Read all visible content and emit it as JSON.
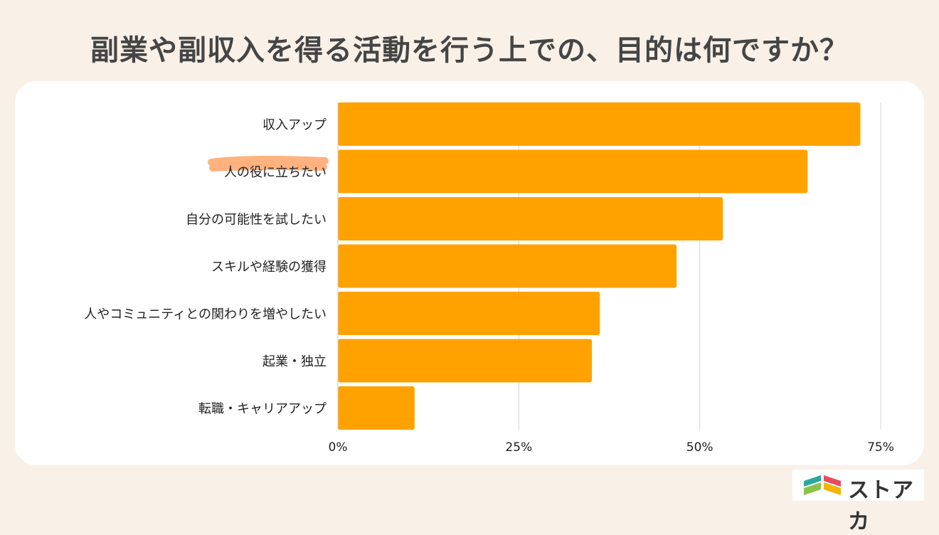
{
  "page": {
    "title": "副業や副収入を得る活動を行う上での、目的は何ですか？"
  },
  "chart_data": {
    "type": "bar",
    "orientation": "horizontal",
    "categories": [
      "収入アップ",
      "人の役に立ちたい",
      "自分の可能性を試したい",
      "スキルや経験の獲得",
      "人やコミュニティとの関わりを増やしたい",
      "起業・独立",
      "転職・キャリアアップ"
    ],
    "values": [
      72.2,
      64.9,
      53.2,
      46.8,
      36.2,
      35.1,
      10.6
    ],
    "x_ticks": [
      "0%",
      "25%",
      "50%",
      "75%"
    ],
    "xlim": [
      0,
      75
    ],
    "grid": true,
    "bar_color": "#ffa200",
    "highlight_color": "#ffaa70",
    "highlighted_category": "人の役に立ちたい"
  },
  "logo": {
    "text": "ストアカ"
  }
}
